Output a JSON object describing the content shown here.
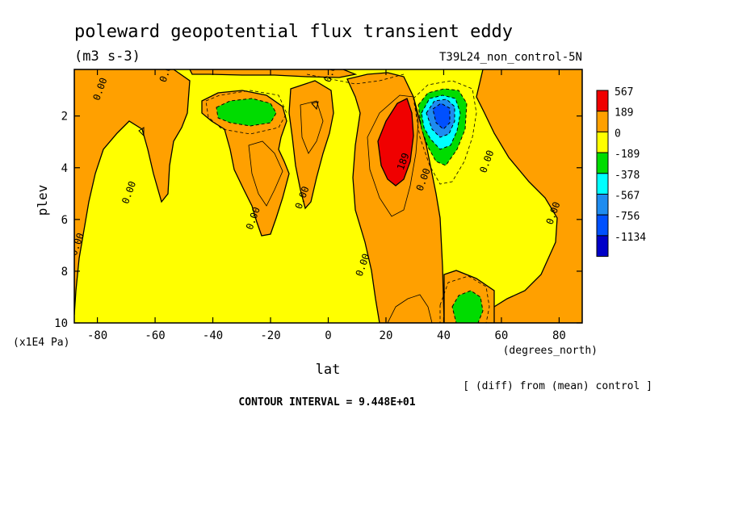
{
  "chart_data": {
    "type": "heatmap",
    "title": "poleward geopotential flux transient eddy",
    "units": "(m3 s-3)",
    "run_label": "T39L24_non_control-5N",
    "xlabel": "lat",
    "x_units": "(degrees_north)",
    "ylabel": "plev",
    "y_units": "(x1E4 Pa)",
    "xlim": [
      -88,
      88
    ],
    "ylim": [
      10,
      0.2
    ],
    "x_ticks": [
      -80,
      -60,
      -40,
      -20,
      0,
      20,
      40,
      60,
      80
    ],
    "x_tick_labels": [
      "-80",
      "-60",
      "-40",
      "-20",
      "0",
      "20",
      "40",
      "60",
      "80"
    ],
    "y_ticks": [
      2,
      4,
      6,
      8,
      10
    ],
    "y_tick_labels": [
      "2",
      "4",
      "6",
      "8",
      "10"
    ],
    "legend": {
      "placement": "right",
      "levels": [
        "567",
        "189",
        "0",
        "-189",
        "-378",
        "-567",
        "-756",
        "-1134"
      ],
      "colors": [
        "#f00000",
        "#ffa000",
        "#ffff00",
        "#00dc00",
        "#00ffff",
        "#1e8cf0",
        "#0050ff",
        "#0000c8"
      ]
    },
    "contour_labels": [
      {
        "text": "0.00",
        "x": -55,
        "y": 0.3
      },
      {
        "text": "0.00",
        "x": -78,
        "y": 1.0
      },
      {
        "text": "0.00",
        "x": -86,
        "y": 7.0
      },
      {
        "text": "0.00",
        "x": -68,
        "y": 5.0
      },
      {
        "text": "0.00",
        "x": -25,
        "y": 6.0
      },
      {
        "text": "0.00",
        "x": -8,
        "y": 5.2
      },
      {
        "text": "0.00",
        "x": 2,
        "y": 0.3
      },
      {
        "text": "0.00",
        "x": 13,
        "y": 7.8
      },
      {
        "text": "189",
        "x": 27,
        "y": 3.8
      },
      {
        "text": "0.00",
        "x": 34,
        "y": 4.5
      },
      {
        "text": "0.00",
        "x": 56,
        "y": 3.8
      },
      {
        "text": "0.00",
        "x": 79,
        "y": 5.8
      }
    ],
    "note": "[ (diff) from (mean) control ]",
    "contour_interval": "CONTOUR INTERVAL = 9.448E+01"
  }
}
